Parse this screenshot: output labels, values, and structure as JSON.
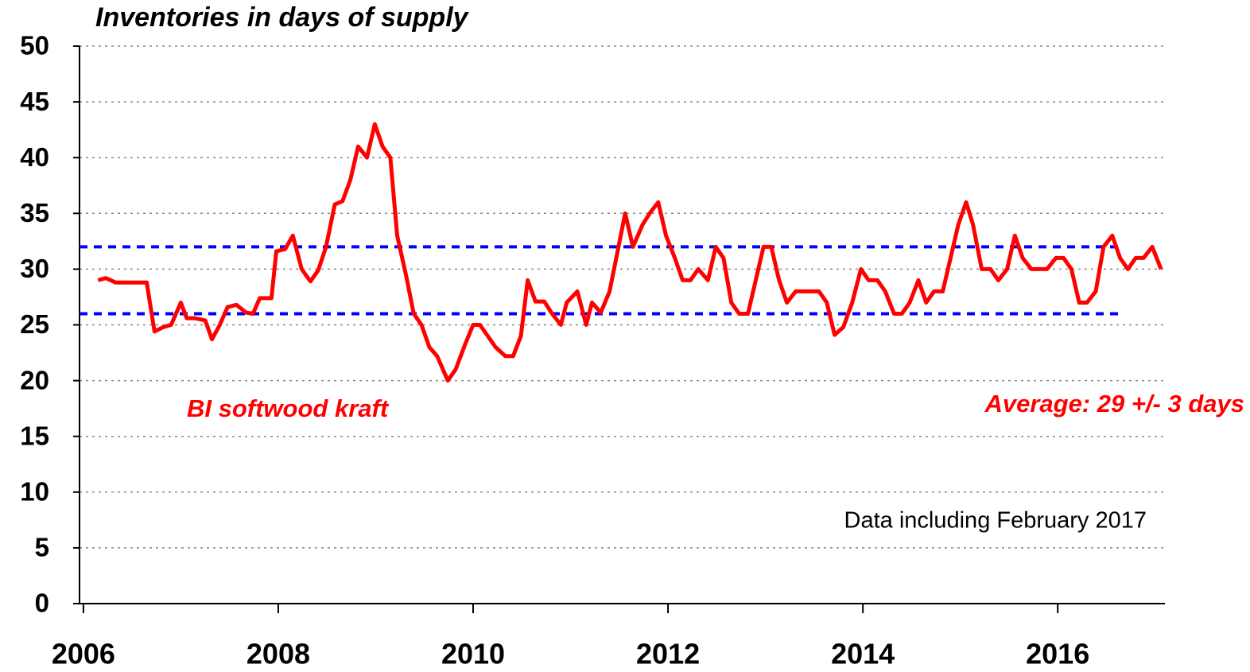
{
  "chart_data": {
    "type": "line",
    "title": "Inventories in days of supply",
    "xlim": [
      2005.96,
      2017.1
    ],
    "xticks": [
      2006,
      2008,
      2010,
      2012,
      2014,
      2016
    ],
    "ylim": [
      0,
      50
    ],
    "yticks": [
      0,
      5,
      10,
      15,
      20,
      25,
      30,
      35,
      40,
      45,
      50
    ],
    "grid": true,
    "x": [
      2006.15,
      2006.23,
      2006.33,
      2006.45,
      2006.65,
      2006.73,
      2006.82,
      2006.9,
      2007.0,
      2007.06,
      2007.14,
      2007.25,
      2007.32,
      2007.4,
      2007.48,
      2007.57,
      2007.67,
      2007.74,
      2007.81,
      2007.93,
      2007.98,
      2008.07,
      2008.15,
      2008.24,
      2008.33,
      2008.41,
      2008.49,
      2008.58,
      2008.66,
      2008.74,
      2008.82,
      2008.91,
      2008.99,
      2009.07,
      2009.15,
      2009.22,
      2009.31,
      2009.39,
      2009.47,
      2009.55,
      2009.63,
      2009.74,
      2009.82,
      2009.92,
      2010.0,
      2010.07,
      2010.15,
      2010.23,
      2010.33,
      2010.41,
      2010.49,
      2010.56,
      2010.64,
      2010.73,
      2010.81,
      2010.9,
      2010.96,
      2011.07,
      2011.16,
      2011.22,
      2011.31,
      2011.4,
      2011.48,
      2011.56,
      2011.64,
      2011.74,
      2011.82,
      2011.9,
      2011.98,
      2012.07,
      2012.15,
      2012.23,
      2012.31,
      2012.41,
      2012.49,
      2012.57,
      2012.65,
      2012.73,
      2012.82,
      2012.9,
      2012.98,
      2013.06,
      2013.14,
      2013.22,
      2013.31,
      2013.39,
      2013.47,
      2013.55,
      2013.63,
      2013.71,
      2013.8,
      2013.89,
      2013.98,
      2014.06,
      2014.15,
      2014.23,
      2014.32,
      2014.4,
      2014.48,
      2014.57,
      2014.65,
      2014.73,
      2014.82,
      2014.9,
      2014.98,
      2015.06,
      2015.13,
      2015.22,
      2015.31,
      2015.39,
      2015.48,
      2015.56,
      2015.64,
      2015.73,
      2015.81,
      2015.89,
      2015.98,
      2016.06,
      2016.14,
      2016.22,
      2016.3,
      2016.39,
      2016.47,
      2016.56,
      2016.64,
      2016.72,
      2016.8,
      2016.88,
      2016.97,
      2017.06
    ],
    "series": [
      {
        "name": "BI softwood kraft",
        "color": "#ff0000",
        "values": [
          29,
          29.2,
          28.8,
          28.8,
          28.8,
          24.4,
          24.8,
          25,
          27,
          25.6,
          25.6,
          25.4,
          23.7,
          25,
          26.6,
          26.8,
          26.1,
          26,
          27.4,
          27.4,
          31.6,
          31.8,
          33,
          30,
          28.9,
          29.9,
          32,
          35.8,
          36.1,
          38,
          41,
          40,
          43,
          41,
          40,
          33,
          29.5,
          26,
          25,
          23,
          22.2,
          20,
          21,
          23.3,
          25,
          25,
          24,
          23,
          22.2,
          22.2,
          24,
          29,
          27.1,
          27.1,
          26,
          25,
          27,
          28,
          25,
          27,
          26.1,
          28,
          31.5,
          35,
          32,
          34,
          35.1,
          36,
          33,
          31,
          29,
          29,
          30,
          29,
          32,
          31,
          27,
          26,
          26,
          29,
          32,
          32,
          29,
          27,
          28,
          28,
          28,
          28,
          27,
          24.1,
          24.8,
          27,
          30,
          29,
          29,
          28,
          26,
          26,
          27,
          29,
          27,
          28,
          28,
          31,
          34,
          36,
          34,
          30,
          30,
          29,
          30,
          33,
          31,
          30,
          30,
          30,
          31,
          31,
          30,
          27,
          27,
          28,
          32,
          33,
          31,
          30,
          31,
          31,
          32,
          30
        ]
      }
    ],
    "reference_lines": [
      {
        "value": 32,
        "color": "#0000ff"
      },
      {
        "value": 26,
        "color": "#0000ff"
      }
    ],
    "annotations": [
      {
        "text": "Average: 29 +/- 3 days",
        "color": "#ff0000"
      },
      {
        "text": "Data including February 2017",
        "color": "#000000"
      }
    ]
  }
}
